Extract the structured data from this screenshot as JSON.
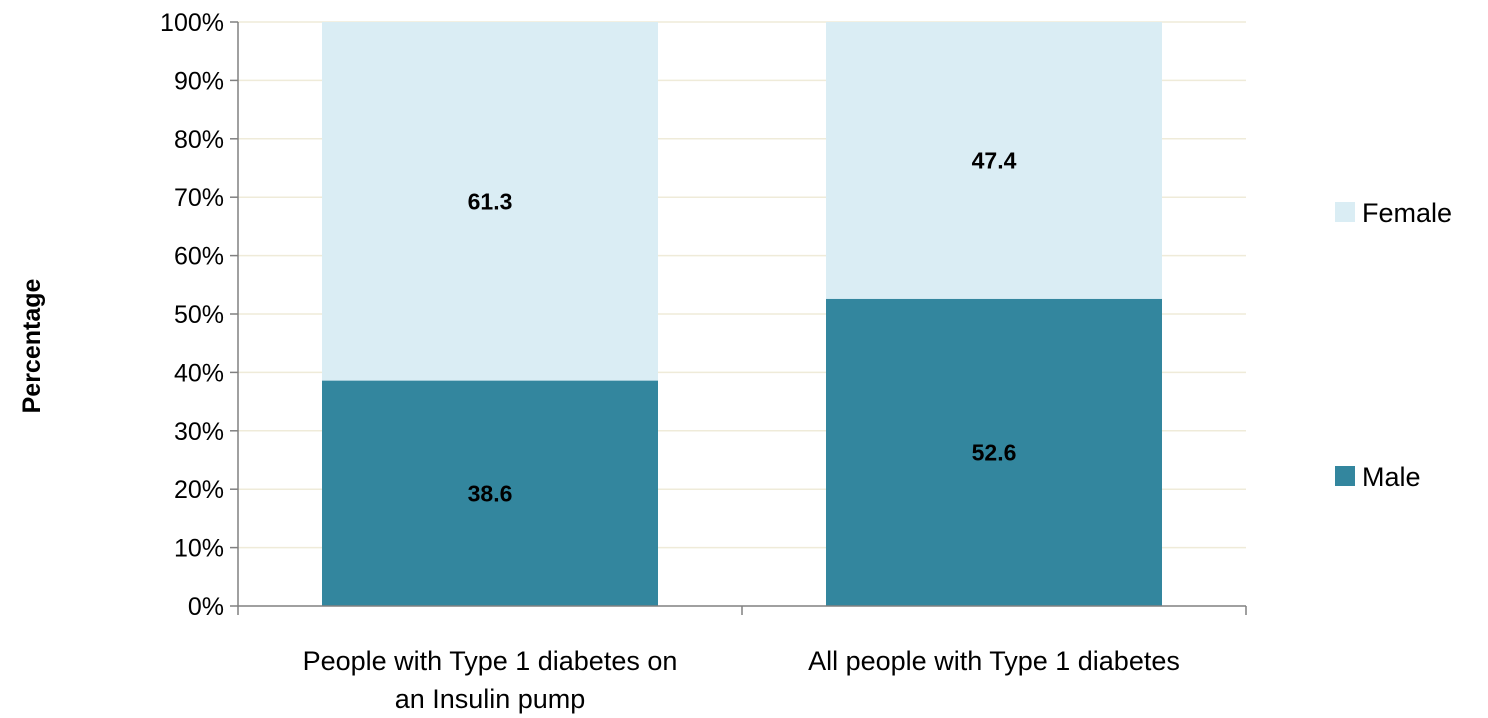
{
  "chart_data": {
    "type": "bar",
    "stacked": true,
    "percent_stacked": true,
    "categories": [
      [
        "People with Type 1 diabetes on",
        "an Insulin pump"
      ],
      [
        "All people with Type 1 diabetes"
      ]
    ],
    "series": [
      {
        "name": "Male",
        "values": [
          38.6,
          52.6
        ],
        "color": "#33869e"
      },
      {
        "name": "Female",
        "values": [
          61.3,
          47.4
        ],
        "color": "#daedf4"
      }
    ],
    "ylabel": "Percentage",
    "xlabel": "",
    "ylim": [
      0,
      100
    ],
    "yticks": [
      "0%",
      "10%",
      "20%",
      "30%",
      "40%",
      "50%",
      "60%",
      "70%",
      "80%",
      "90%",
      "100%"
    ],
    "grid": true,
    "gridline_color": "#efebd9",
    "legend": {
      "placement": "right",
      "order": [
        "Female",
        "Male"
      ]
    }
  }
}
